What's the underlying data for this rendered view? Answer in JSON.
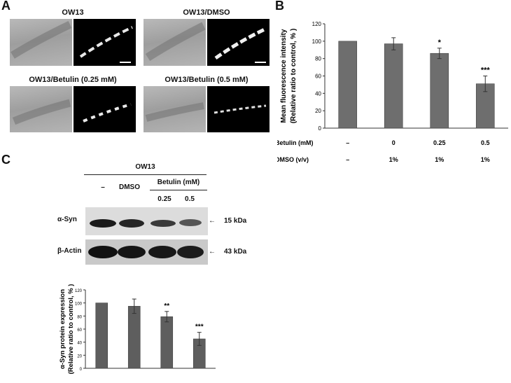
{
  "panels": {
    "A": {
      "label": "A",
      "conditions": [
        "OW13",
        "OW13/DMSO",
        "OW13/Betulin  (0.25 mM)",
        "OW13/Betulin (0.5 mM)"
      ]
    },
    "B": {
      "label": "B"
    },
    "C": {
      "label": "C",
      "strain": "OW13",
      "lane_headers": {
        "control": "–",
        "dmso": "DMSO",
        "betulin": "Betulin (mM)",
        "dose1": "0.25",
        "dose2": "0.5"
      },
      "blots": [
        {
          "protein": "α-Syn",
          "size": "15 kDa"
        },
        {
          "protein": "β-Actin",
          "size": "43 kDa"
        }
      ]
    }
  },
  "chart_data": [
    {
      "type": "bar",
      "panel": "B",
      "categories": [
        "–",
        "0",
        "0.25",
        "0.5"
      ],
      "values": [
        100,
        97,
        86,
        51
      ],
      "errors": [
        0,
        7,
        6,
        9
      ],
      "significance": [
        "",
        "",
        "*",
        "***"
      ],
      "ylabel_line1": "Mean fluorescence intensity",
      "ylabel_line2": "(Relative ratio to control, % )",
      "ylim": [
        0,
        120
      ],
      "yticks": [
        0,
        20,
        40,
        60,
        80,
        100,
        120
      ],
      "row_labels": [
        {
          "label": "Betulin   (mM)",
          "values": [
            "–",
            "0",
            "0.25",
            "0.5"
          ]
        },
        {
          "label": "DMSO   (v/v)",
          "values": [
            "–",
            "1%",
            "1%",
            "1%"
          ]
        }
      ],
      "bar_color": "#6e6e6e"
    },
    {
      "type": "bar",
      "panel": "C",
      "categories": [
        "–",
        "DMSO",
        "0.25",
        "0.5"
      ],
      "values": [
        100,
        95,
        79,
        45
      ],
      "errors": [
        0,
        11,
        8,
        10
      ],
      "significance": [
        "",
        "",
        "**",
        "***"
      ],
      "ylabel_line1": "α-Syn protein expression",
      "ylabel_line2": "(Relative ratio to control, % )",
      "ylim": [
        0,
        120
      ],
      "yticks": [
        0,
        20,
        40,
        60,
        80,
        100,
        120
      ],
      "bar_color": "#5e5e5e"
    }
  ]
}
